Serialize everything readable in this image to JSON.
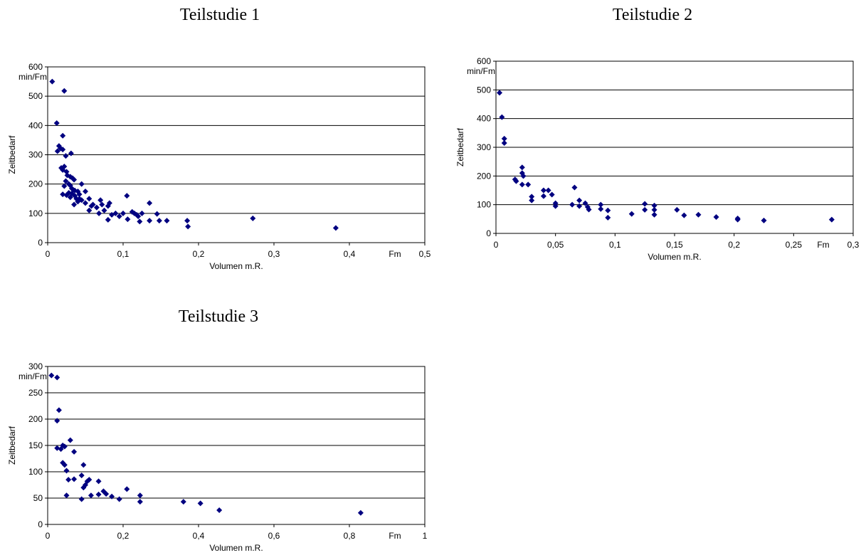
{
  "chart_data": [
    {
      "type": "scatter",
      "title": "Teilstudie 1",
      "xlabel": "Volumen m.R.",
      "ylabel": "Zeitbedarf",
      "x_unit": "Fm",
      "y_unit": "min/Fm",
      "xlim": [
        0,
        0.5
      ],
      "ylim": [
        0,
        600
      ],
      "x_ticks": [
        "0",
        "0,1",
        "0,2",
        "0,3",
        "0,4",
        "0,5"
      ],
      "y_ticks": [
        "0",
        "100",
        "200",
        "300",
        "400",
        "500",
        "600"
      ],
      "grid": "horizontal",
      "marker_color": "#000080",
      "points": [
        [
          0.006,
          550
        ],
        [
          0.022,
          518
        ],
        [
          0.012,
          408
        ],
        [
          0.02,
          365
        ],
        [
          0.015,
          330
        ],
        [
          0.017,
          322
        ],
        [
          0.013,
          312
        ],
        [
          0.02,
          318
        ],
        [
          0.024,
          296
        ],
        [
          0.031,
          305
        ],
        [
          0.018,
          255
        ],
        [
          0.02,
          248
        ],
        [
          0.022,
          260
        ],
        [
          0.025,
          242
        ],
        [
          0.026,
          230
        ],
        [
          0.03,
          225
        ],
        [
          0.033,
          220
        ],
        [
          0.035,
          215
        ],
        [
          0.024,
          210
        ],
        [
          0.028,
          200
        ],
        [
          0.03,
          195
        ],
        [
          0.022,
          193
        ],
        [
          0.032,
          185
        ],
        [
          0.034,
          180
        ],
        [
          0.036,
          178
        ],
        [
          0.04,
          175
        ],
        [
          0.028,
          170
        ],
        [
          0.032,
          168
        ],
        [
          0.02,
          165
        ],
        [
          0.025,
          162
        ],
        [
          0.036,
          160
        ],
        [
          0.042,
          165
        ],
        [
          0.045,
          200
        ],
        [
          0.05,
          175
        ],
        [
          0.03,
          155
        ],
        [
          0.038,
          150
        ],
        [
          0.04,
          140
        ],
        [
          0.045,
          145
        ],
        [
          0.05,
          135
        ],
        [
          0.035,
          130
        ],
        [
          0.042,
          150
        ],
        [
          0.055,
          150
        ],
        [
          0.058,
          125
        ],
        [
          0.06,
          130
        ],
        [
          0.055,
          110
        ],
        [
          0.065,
          120
        ],
        [
          0.07,
          145
        ],
        [
          0.072,
          130
        ],
        [
          0.068,
          100
        ],
        [
          0.075,
          110
        ],
        [
          0.08,
          125
        ],
        [
          0.082,
          135
        ],
        [
          0.08,
          78
        ],
        [
          0.085,
          95
        ],
        [
          0.09,
          100
        ],
        [
          0.095,
          90
        ],
        [
          0.1,
          100
        ],
        [
          0.105,
          160
        ],
        [
          0.106,
          80
        ],
        [
          0.112,
          105
        ],
        [
          0.115,
          100
        ],
        [
          0.118,
          95
        ],
        [
          0.12,
          90
        ],
        [
          0.122,
          72
        ],
        [
          0.125,
          100
        ],
        [
          0.135,
          135
        ],
        [
          0.135,
          75
        ],
        [
          0.145,
          98
        ],
        [
          0.148,
          75
        ],
        [
          0.158,
          75
        ],
        [
          0.185,
          75
        ],
        [
          0.186,
          55
        ],
        [
          0.272,
          83
        ],
        [
          0.382,
          50
        ]
      ]
    },
    {
      "type": "scatter",
      "title": "Teilstudie 2",
      "xlabel": "Volumen m.R.",
      "ylabel": "Zeitbedarf",
      "x_unit": "Fm",
      "y_unit": "min/Fm",
      "xlim": [
        0,
        0.3
      ],
      "ylim": [
        0,
        600
      ],
      "x_ticks": [
        "0",
        "0,05",
        "0,1",
        "0,15",
        "0,2",
        "0,25",
        "0,3"
      ],
      "y_ticks": [
        "0",
        "100",
        "200",
        "300",
        "400",
        "500",
        "600"
      ],
      "grid": "horizontal",
      "marker_color": "#000080",
      "points": [
        [
          0.003,
          490
        ],
        [
          0.005,
          405
        ],
        [
          0.007,
          330
        ],
        [
          0.007,
          315
        ],
        [
          0.016,
          188
        ],
        [
          0.017,
          182
        ],
        [
          0.022,
          230
        ],
        [
          0.022,
          210
        ],
        [
          0.023,
          200
        ],
        [
          0.022,
          170
        ],
        [
          0.027,
          170
        ],
        [
          0.03,
          128
        ],
        [
          0.03,
          115
        ],
        [
          0.04,
          150
        ],
        [
          0.04,
          130
        ],
        [
          0.044,
          150
        ],
        [
          0.047,
          135
        ],
        [
          0.05,
          105
        ],
        [
          0.05,
          95
        ],
        [
          0.064,
          100
        ],
        [
          0.066,
          160
        ],
        [
          0.07,
          115
        ],
        [
          0.07,
          95
        ],
        [
          0.075,
          105
        ],
        [
          0.077,
          92
        ],
        [
          0.078,
          83
        ],
        [
          0.088,
          100
        ],
        [
          0.088,
          85
        ],
        [
          0.094,
          80
        ],
        [
          0.094,
          55
        ],
        [
          0.114,
          68
        ],
        [
          0.125,
          103
        ],
        [
          0.125,
          82
        ],
        [
          0.133,
          97
        ],
        [
          0.133,
          82
        ],
        [
          0.133,
          65
        ],
        [
          0.152,
          82
        ],
        [
          0.158,
          63
        ],
        [
          0.17,
          65
        ],
        [
          0.185,
          57
        ],
        [
          0.203,
          52
        ],
        [
          0.203,
          48
        ],
        [
          0.225,
          45
        ],
        [
          0.282,
          48
        ]
      ]
    },
    {
      "type": "scatter",
      "title": "Teilstudie 3",
      "xlabel": "Volumen m.R.",
      "ylabel": "Zeitbedarf",
      "x_unit": "Fm",
      "y_unit": "min/Fm",
      "xlim": [
        0,
        1
      ],
      "ylim": [
        0,
        300
      ],
      "x_ticks": [
        "0",
        "0,2",
        "0,4",
        "0,6",
        "0,8",
        "1"
      ],
      "y_ticks": [
        "0",
        "50",
        "100",
        "150",
        "200",
        "250",
        "300"
      ],
      "grid": "horizontal",
      "marker_color": "#000080",
      "points": [
        [
          0.01,
          283
        ],
        [
          0.025,
          279
        ],
        [
          0.03,
          217
        ],
        [
          0.025,
          197
        ],
        [
          0.025,
          145
        ],
        [
          0.04,
          150
        ],
        [
          0.035,
          143
        ],
        [
          0.045,
          148
        ],
        [
          0.06,
          160
        ],
        [
          0.07,
          138
        ],
        [
          0.04,
          117
        ],
        [
          0.045,
          113
        ],
        [
          0.05,
          102
        ],
        [
          0.055,
          85
        ],
        [
          0.07,
          86
        ],
        [
          0.05,
          55
        ],
        [
          0.09,
          93
        ],
        [
          0.095,
          113
        ],
        [
          0.095,
          70
        ],
        [
          0.1,
          75
        ],
        [
          0.105,
          82
        ],
        [
          0.11,
          85
        ],
        [
          0.09,
          48
        ],
        [
          0.115,
          55
        ],
        [
          0.135,
          82
        ],
        [
          0.135,
          57
        ],
        [
          0.148,
          63
        ],
        [
          0.155,
          58
        ],
        [
          0.17,
          53
        ],
        [
          0.19,
          48
        ],
        [
          0.21,
          67
        ],
        [
          0.245,
          55
        ],
        [
          0.245,
          43
        ],
        [
          0.36,
          43
        ],
        [
          0.405,
          40
        ],
        [
          0.455,
          27
        ],
        [
          0.83,
          22
        ]
      ]
    }
  ]
}
